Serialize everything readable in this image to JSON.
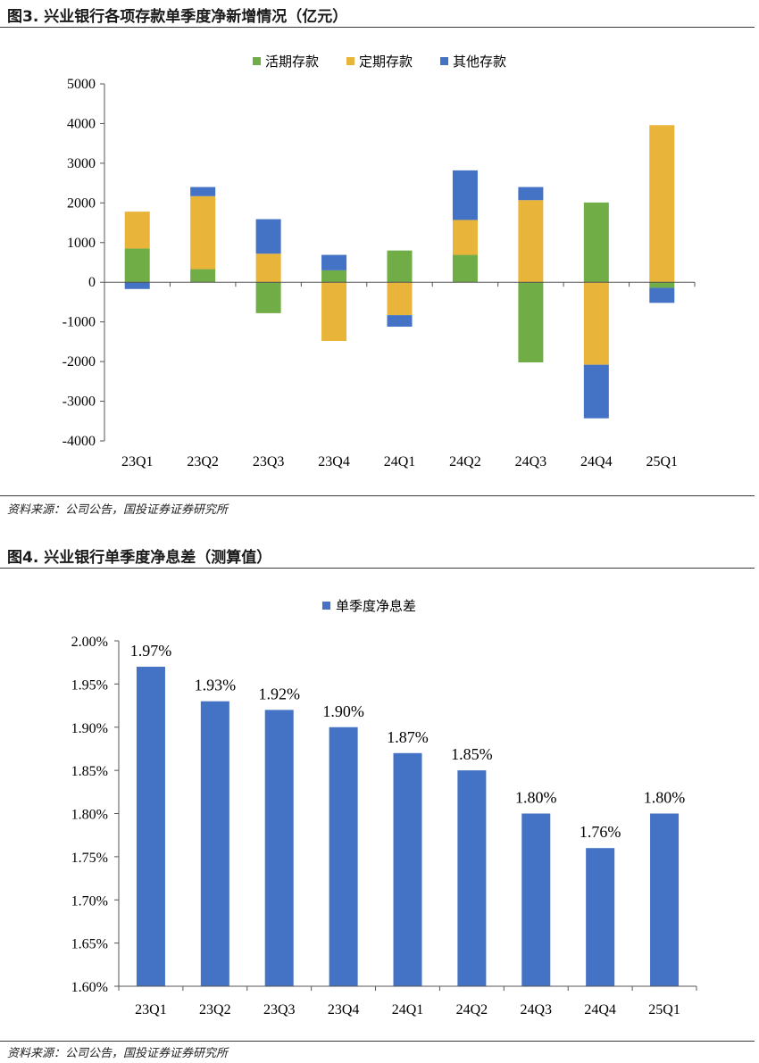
{
  "figure3": {
    "title": "图3. 兴业银行各项存款单季度净新增情况（亿元）",
    "source": "资料来源：公司公告，国投证券证券研究所"
  },
  "figure4": {
    "title": "图4. 兴业银行单季度净息差（测算值）",
    "source": "资料来源：公司公告，国投证券证券研究所"
  },
  "chart_data": [
    {
      "type": "bar",
      "stacked": true,
      "title": "",
      "xlabel": "",
      "ylabel": "",
      "categories": [
        "23Q1",
        "23Q2",
        "23Q3",
        "23Q4",
        "24Q1",
        "24Q2",
        "24Q3",
        "24Q4",
        "25Q1"
      ],
      "series": [
        {
          "name": "活期存款",
          "color": "#70ad47",
          "values": [
            850,
            330,
            -780,
            300,
            800,
            690,
            -2020,
            2010,
            -140
          ]
        },
        {
          "name": "定期存款",
          "color": "#e8b43a",
          "values": [
            930,
            1840,
            720,
            -1480,
            -830,
            880,
            2070,
            -2080,
            3960
          ]
        },
        {
          "name": "其他存款",
          "color": "#4472c4",
          "values": [
            -170,
            230,
            870,
            390,
            -290,
            1250,
            330,
            -1350,
            -380
          ]
        }
      ],
      "ylim": [
        -4000,
        5000
      ],
      "yticks": [
        -4000,
        -3000,
        -2000,
        -1000,
        0,
        1000,
        2000,
        3000,
        4000,
        5000
      ],
      "legend": "top"
    },
    {
      "type": "bar",
      "title": "",
      "xlabel": "",
      "ylabel": "",
      "categories": [
        "23Q1",
        "23Q2",
        "23Q3",
        "23Q4",
        "24Q1",
        "24Q2",
        "24Q3",
        "24Q4",
        "25Q1"
      ],
      "series": [
        {
          "name": "单季度净息差",
          "color": "#4472c4",
          "values": [
            1.97,
            1.93,
            1.92,
            1.9,
            1.87,
            1.85,
            1.8,
            1.76,
            1.8
          ]
        }
      ],
      "data_labels": [
        "1.97%",
        "1.93%",
        "1.92%",
        "1.90%",
        "1.87%",
        "1.85%",
        "1.80%",
        "1.76%",
        "1.80%"
      ],
      "ylim": [
        1.6,
        2.0
      ],
      "yticks": [
        1.6,
        1.65,
        1.7,
        1.75,
        1.8,
        1.85,
        1.9,
        1.95,
        2.0
      ],
      "ytick_labels": [
        "1.60%",
        "1.65%",
        "1.70%",
        "1.75%",
        "1.80%",
        "1.85%",
        "1.90%",
        "1.95%",
        "2.00%"
      ],
      "legend": "top"
    }
  ]
}
